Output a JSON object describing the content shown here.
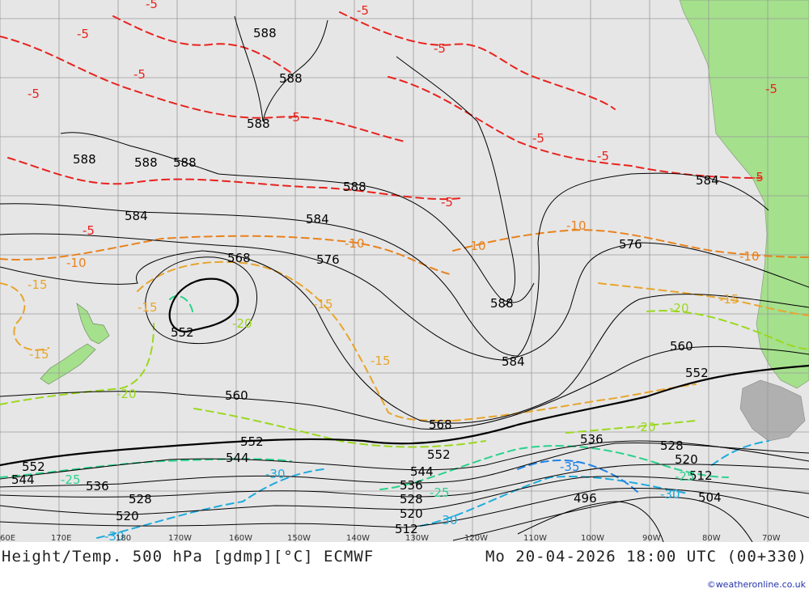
{
  "title_left": "Height/Temp. 500 hPa [gdmp][°C] ECMWF",
  "title_right": "Mo 20-04-2026 18:00 UTC (00+330)",
  "credit": "©weatheronline.co.uk",
  "colors": {
    "sea": "#e6e6e6",
    "land": "#a5e08c",
    "grid": "#9a9a9a",
    "height_contour": "#000000",
    "temp_m5": "#e8231e",
    "temp_m10": "#e8821e",
    "temp_m15": "#e8a52d",
    "temp_m20": "#9ad81e",
    "temp_m25": "#2ad28c",
    "temp_m30": "#1eaadc",
    "temp_m35": "#1e82e6"
  },
  "longitude_labels": [
    "60E",
    "170E",
    "180",
    "170W",
    "160W",
    "150W",
    "140W",
    "130W",
    "120W",
    "110W",
    "100W",
    "90W",
    "80W",
    "70W"
  ],
  "height_labels": [
    "588",
    "588",
    "588",
    "588",
    "588",
    "588",
    "588",
    "584",
    "584",
    "584",
    "576",
    "576",
    "568",
    "568",
    "560",
    "560",
    "552",
    "552",
    "552",
    "552",
    "544",
    "544",
    "544",
    "536",
    "536",
    "536",
    "528",
    "528",
    "528",
    "520",
    "520",
    "520",
    "512",
    "512",
    "504",
    "496",
    "588",
    "584",
    "552"
  ],
  "temp_labels": [
    "-5",
    "-5",
    "-5",
    "-5",
    "-5",
    "-5",
    "-5",
    "-5",
    "-5",
    "-5",
    "-10",
    "-10",
    "-10",
    "-10",
    "-10",
    "-15",
    "-15",
    "-15",
    "-15",
    "-15",
    "-15",
    "-20",
    "-20",
    "-20",
    "-20",
    "-25",
    "-25",
    "-25",
    "-30",
    "-30",
    "-30",
    "-30",
    "-35",
    "-5",
    "-5",
    "-5"
  ]
}
